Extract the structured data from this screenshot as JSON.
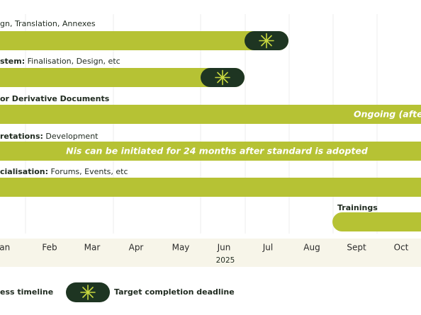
{
  "rows": [
    {
      "label": {
        "bold": "",
        "text": "gn, Translation, Annexes"
      }
    },
    {
      "label": {
        "bold": "stem:",
        "text": " Finalisation, Design, etc"
      }
    },
    {
      "label": {
        "bold": "or Derivative Documents",
        "text": ""
      },
      "bar_text": "Ongoing (after N"
    },
    {
      "label": {
        "bold": "retations:",
        "text": " Development"
      },
      "bar_text": "Nis can be initiated for 24 months after standard is adopted"
    },
    {
      "label": {
        "bold": "cialisation:",
        "text": " Forums, Events, etc"
      }
    },
    {
      "label": {
        "bold": "Trainings",
        "text": ""
      }
    }
  ],
  "axis": {
    "months": [
      "Jan",
      "Feb",
      "Mar",
      "Apr",
      "May",
      "Jun",
      "Jul",
      "Aug",
      "Sept",
      "Oct"
    ],
    "year": "2025"
  },
  "legend": {
    "timeline": "ess timeline",
    "deadline": "Target completion deadline"
  }
}
